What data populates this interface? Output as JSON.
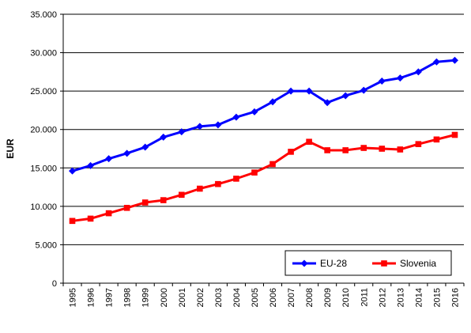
{
  "chart_data": {
    "type": "line",
    "title": "",
    "xlabel": "",
    "ylabel": "EUR",
    "ylim": [
      0,
      35000
    ],
    "yticks": [
      0,
      5000,
      10000,
      15000,
      20000,
      25000,
      30000,
      35000
    ],
    "ytick_labels": [
      "0",
      "5.000",
      "10.000",
      "15.000",
      "20.000",
      "25.000",
      "30.000",
      "35.000"
    ],
    "grid": true,
    "legend_position": "bottom-right",
    "categories": [
      "1995",
      "1996",
      "1997",
      "1998",
      "1999",
      "2000",
      "2001",
      "2002",
      "2003",
      "2004",
      "2005",
      "2006",
      "2007",
      "2008",
      "2009",
      "2010",
      "2011",
      "2012",
      "2013",
      "2014",
      "2015",
      "2016"
    ],
    "series": [
      {
        "name": "EU-28",
        "color": "#0000ff",
        "marker": "diamond",
        "values": [
          14600,
          15300,
          16200,
          16900,
          17700,
          19000,
          19700,
          20400,
          20600,
          21600,
          22300,
          23600,
          25000,
          25000,
          23500,
          24400,
          25100,
          26300,
          26700,
          27500,
          28800,
          29000
        ]
      },
      {
        "name": "Slovenia",
        "color": "#ff0000",
        "marker": "square",
        "values": [
          8100,
          8400,
          9100,
          9800,
          10500,
          10800,
          11500,
          12300,
          12900,
          13600,
          14400,
          15500,
          17100,
          18400,
          17300,
          17300,
          17600,
          17500,
          17400,
          18100,
          18700,
          19300
        ]
      }
    ]
  }
}
